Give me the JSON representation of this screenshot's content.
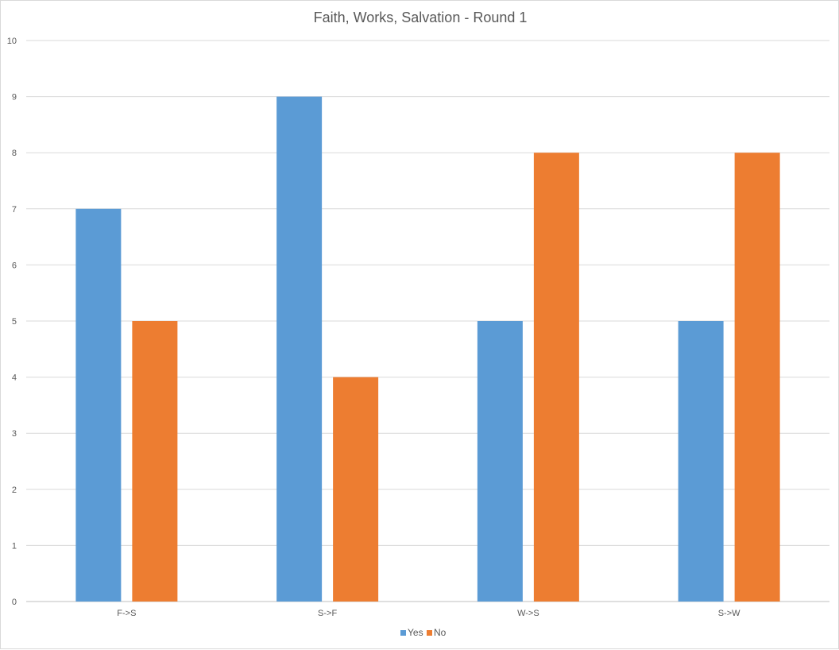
{
  "chart_data": {
    "type": "bar",
    "title": "Faith, Works, Salvation - Round 1",
    "categories": [
      "F->S",
      "S->F",
      "W->S",
      "S->W"
    ],
    "series": [
      {
        "name": "Yes",
        "values": [
          7,
          9,
          5,
          5
        ],
        "color": "#5b9bd5"
      },
      {
        "name": "No",
        "values": [
          5,
          4,
          8,
          8
        ],
        "color": "#ed7d31"
      }
    ],
    "ylim": [
      0,
      10
    ],
    "yticks": [
      0,
      1,
      2,
      3,
      4,
      5,
      6,
      7,
      8,
      9,
      10
    ],
    "grid": true,
    "legend_position": "bottom"
  }
}
